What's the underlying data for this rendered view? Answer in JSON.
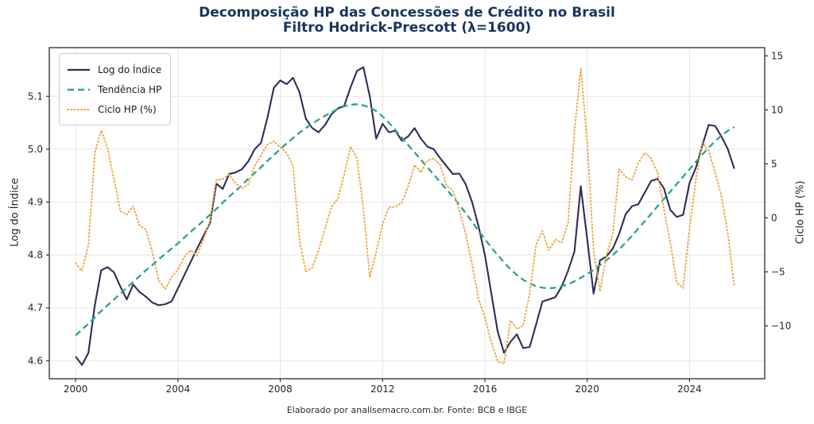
{
  "title": {
    "line1": "Decomposição HP das Concessões de Crédito no Brasil",
    "line2": "Filtro Hodrick-Prescott (λ=1600)"
  },
  "caption": "Elaborado por analisemacro.com.br. Fonte: BCB e IBGE",
  "legend": {
    "items": [
      {
        "label": "Log do Índice",
        "color": "#302d58",
        "style": "solid"
      },
      {
        "label": "Tendência HP",
        "color": "#2aa38c",
        "style": "dashed"
      },
      {
        "label": "Ciclo HP (%)",
        "color": "#f0a33c",
        "style": "dotted"
      }
    ]
  },
  "chart_data": {
    "type": "line",
    "x_axis": {
      "min": 1998.97,
      "max": 2026.94,
      "ticks": [
        2000,
        2004,
        2008,
        2012,
        2016,
        2020,
        2024
      ],
      "tick_labels": [
        "2000",
        "2004",
        "2008",
        "2012",
        "2016",
        "2020",
        "2024"
      ]
    },
    "y_left": {
      "label": "Log do Índice",
      "min": 4.566,
      "max": 5.192,
      "ticks": [
        4.6,
        4.7,
        4.8,
        4.9,
        5.0,
        5.1
      ],
      "tick_labels": [
        "4.6",
        "4.7",
        "4.8",
        "4.9",
        "5.0",
        "5.1"
      ]
    },
    "y_right": {
      "label": "Ciclo HP (%)",
      "min": -14.9,
      "max": 15.76,
      "ticks": [
        15,
        10,
        5,
        0,
        -5,
        -10
      ],
      "tick_labels": [
        "15",
        "10",
        "5",
        "0",
        "−5",
        "−10"
      ]
    },
    "grid": true,
    "legend_position": "upper-left",
    "x_start": 2000.0,
    "x_step": 0.25,
    "frequency": "quarterly",
    "series": [
      {
        "name": "Log do Índice",
        "color": "#302d58",
        "style": "solid",
        "width": 2.1,
        "axis": "left",
        "values": [
          4.608,
          4.592,
          4.615,
          4.705,
          4.771,
          4.777,
          4.767,
          4.74,
          4.716,
          4.744,
          4.73,
          4.721,
          4.71,
          4.705,
          4.707,
          4.712,
          4.737,
          4.762,
          4.787,
          4.812,
          4.836,
          4.86,
          4.935,
          4.925,
          4.953,
          4.956,
          4.962,
          4.977,
          5.0,
          5.012,
          5.06,
          5.116,
          5.13,
          5.123,
          5.135,
          5.108,
          5.058,
          5.04,
          5.032,
          5.046,
          5.066,
          5.077,
          5.082,
          5.117,
          5.148,
          5.155,
          5.1,
          5.02,
          5.048,
          5.032,
          5.035,
          5.016,
          5.024,
          5.04,
          5.02,
          5.005,
          5.0,
          4.983,
          4.968,
          4.953,
          4.954,
          4.934,
          4.9,
          4.855,
          4.8,
          4.728,
          4.655,
          4.615,
          4.636,
          4.65,
          4.624,
          4.626,
          4.668,
          4.712,
          4.716,
          4.72,
          4.74,
          4.77,
          4.806,
          4.93,
          4.83,
          4.727,
          4.79,
          4.797,
          4.812,
          4.84,
          4.877,
          4.892,
          4.896,
          4.918,
          4.94,
          4.944,
          4.926,
          4.885,
          4.872,
          4.876,
          4.936,
          4.965,
          5.007,
          5.046,
          5.044,
          5.024,
          5.0,
          4.963
        ]
      },
      {
        "name": "Tendência HP",
        "color": "#2aa38c",
        "style": "dashed",
        "width": 2.3,
        "axis": "left",
        "values": [
          4.648,
          4.659,
          4.67,
          4.682,
          4.694,
          4.705,
          4.716,
          4.727,
          4.738,
          4.749,
          4.76,
          4.771,
          4.781,
          4.792,
          4.802,
          4.812,
          4.822,
          4.833,
          4.844,
          4.854,
          4.865,
          4.876,
          4.887,
          4.899,
          4.91,
          4.921,
          4.932,
          4.944,
          4.955,
          4.966,
          4.978,
          4.989,
          5.0,
          5.011,
          5.021,
          5.031,
          5.04,
          5.048,
          5.056,
          5.063,
          5.07,
          5.076,
          5.081,
          5.084,
          5.085,
          5.083,
          5.079,
          5.072,
          5.062,
          5.05,
          5.036,
          5.022,
          5.008,
          4.994,
          4.98,
          4.966,
          4.952,
          4.938,
          4.924,
          4.91,
          4.895,
          4.879,
          4.863,
          4.846,
          4.83,
          4.814,
          4.8,
          4.786,
          4.773,
          4.762,
          4.753,
          4.746,
          4.741,
          4.738,
          4.737,
          4.738,
          4.741,
          4.745,
          4.75,
          4.757,
          4.764,
          4.772,
          4.781,
          4.79,
          4.8,
          4.811,
          4.823,
          4.836,
          4.85,
          4.864,
          4.878,
          4.892,
          4.906,
          4.92,
          4.934,
          4.948,
          4.962,
          4.976,
          4.99,
          5.003,
          5.015,
          5.026,
          5.035,
          5.042
        ]
      },
      {
        "name": "Ciclo HP (%)",
        "color": "#f0a33c",
        "style": "dotted",
        "width": 1.9,
        "axis": "right",
        "values": [
          -4.2,
          -4.9,
          -2.5,
          6.0,
          8.1,
          6.4,
          3.6,
          0.6,
          0.3,
          1.1,
          -0.7,
          -1.1,
          -3.2,
          -5.8,
          -6.6,
          -5.5,
          -4.8,
          -3.6,
          -3.0,
          -3.5,
          -2.0,
          -0.3,
          3.5,
          3.6,
          4.0,
          3.2,
          2.7,
          3.1,
          4.8,
          5.8,
          6.8,
          7.1,
          6.5,
          6.0,
          4.8,
          -2.0,
          -5.0,
          -4.6,
          -3.0,
          -1.0,
          1.0,
          1.8,
          4.0,
          6.6,
          5.5,
          0.9,
          -5.5,
          -3.2,
          -0.6,
          1.0,
          1.0,
          1.4,
          2.9,
          4.9,
          4.2,
          5.3,
          5.5,
          4.9,
          3.0,
          2.5,
          0.7,
          -1.5,
          -4.3,
          -7.5,
          -9.2,
          -11.5,
          -13.3,
          -13.5,
          -9.5,
          -10.3,
          -10.0,
          -7.0,
          -2.5,
          -1.2,
          -3.0,
          -2.0,
          -2.3,
          -0.5,
          8.0,
          13.8,
          7.0,
          -3.0,
          -6.8,
          -3.5,
          -1.5,
          4.5,
          3.8,
          3.5,
          5.1,
          6.0,
          5.5,
          4.2,
          0.8,
          -2.3,
          -6.0,
          -6.5,
          -1.0,
          3.5,
          7.0,
          6.2,
          4.2,
          2.0,
          -1.5,
          -6.3
        ]
      }
    ]
  },
  "colors": {
    "title": "#16355f",
    "grid": "#e5e5e5",
    "spine": "#2b2b2b",
    "tick_text": "#262626",
    "background": "#ffffff"
  }
}
